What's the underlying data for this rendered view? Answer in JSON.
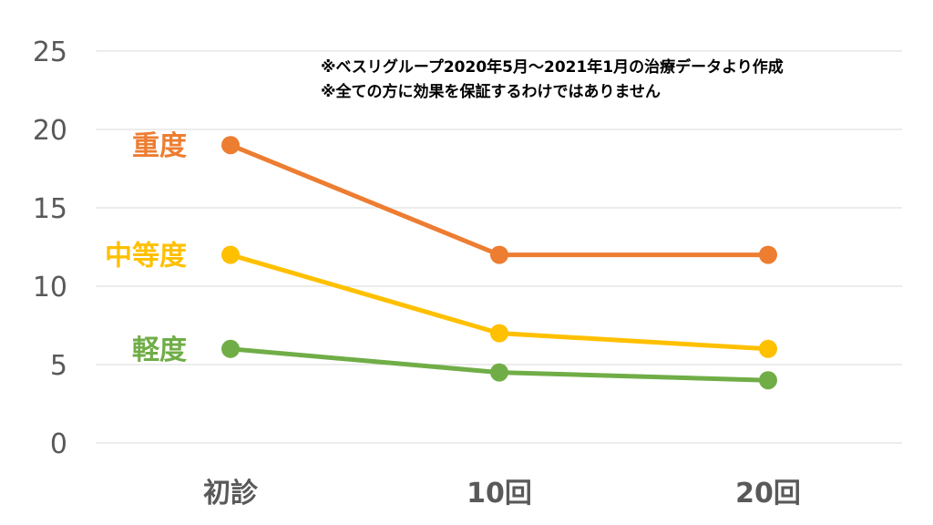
{
  "chart_data": {
    "type": "line",
    "categories": [
      "初診",
      "10回",
      "20回"
    ],
    "ylim": [
      0,
      25
    ],
    "yticks": [
      "0",
      "5",
      "10",
      "15",
      "20",
      "25"
    ],
    "grid": true,
    "annotations": [
      "※ベスリグループ2020年5月〜2021年1月の治療データより作成",
      "※全ての方に効果を保証するわけではありません"
    ],
    "series": [
      {
        "name": "重度",
        "color": "#ED7D31",
        "values": [
          19,
          12,
          12
        ]
      },
      {
        "name": "中等度",
        "color": "#FFC000",
        "values": [
          12,
          7,
          6
        ]
      },
      {
        "name": "軽度",
        "color": "#70AD47",
        "values": [
          6,
          4.5,
          4
        ]
      }
    ]
  }
}
